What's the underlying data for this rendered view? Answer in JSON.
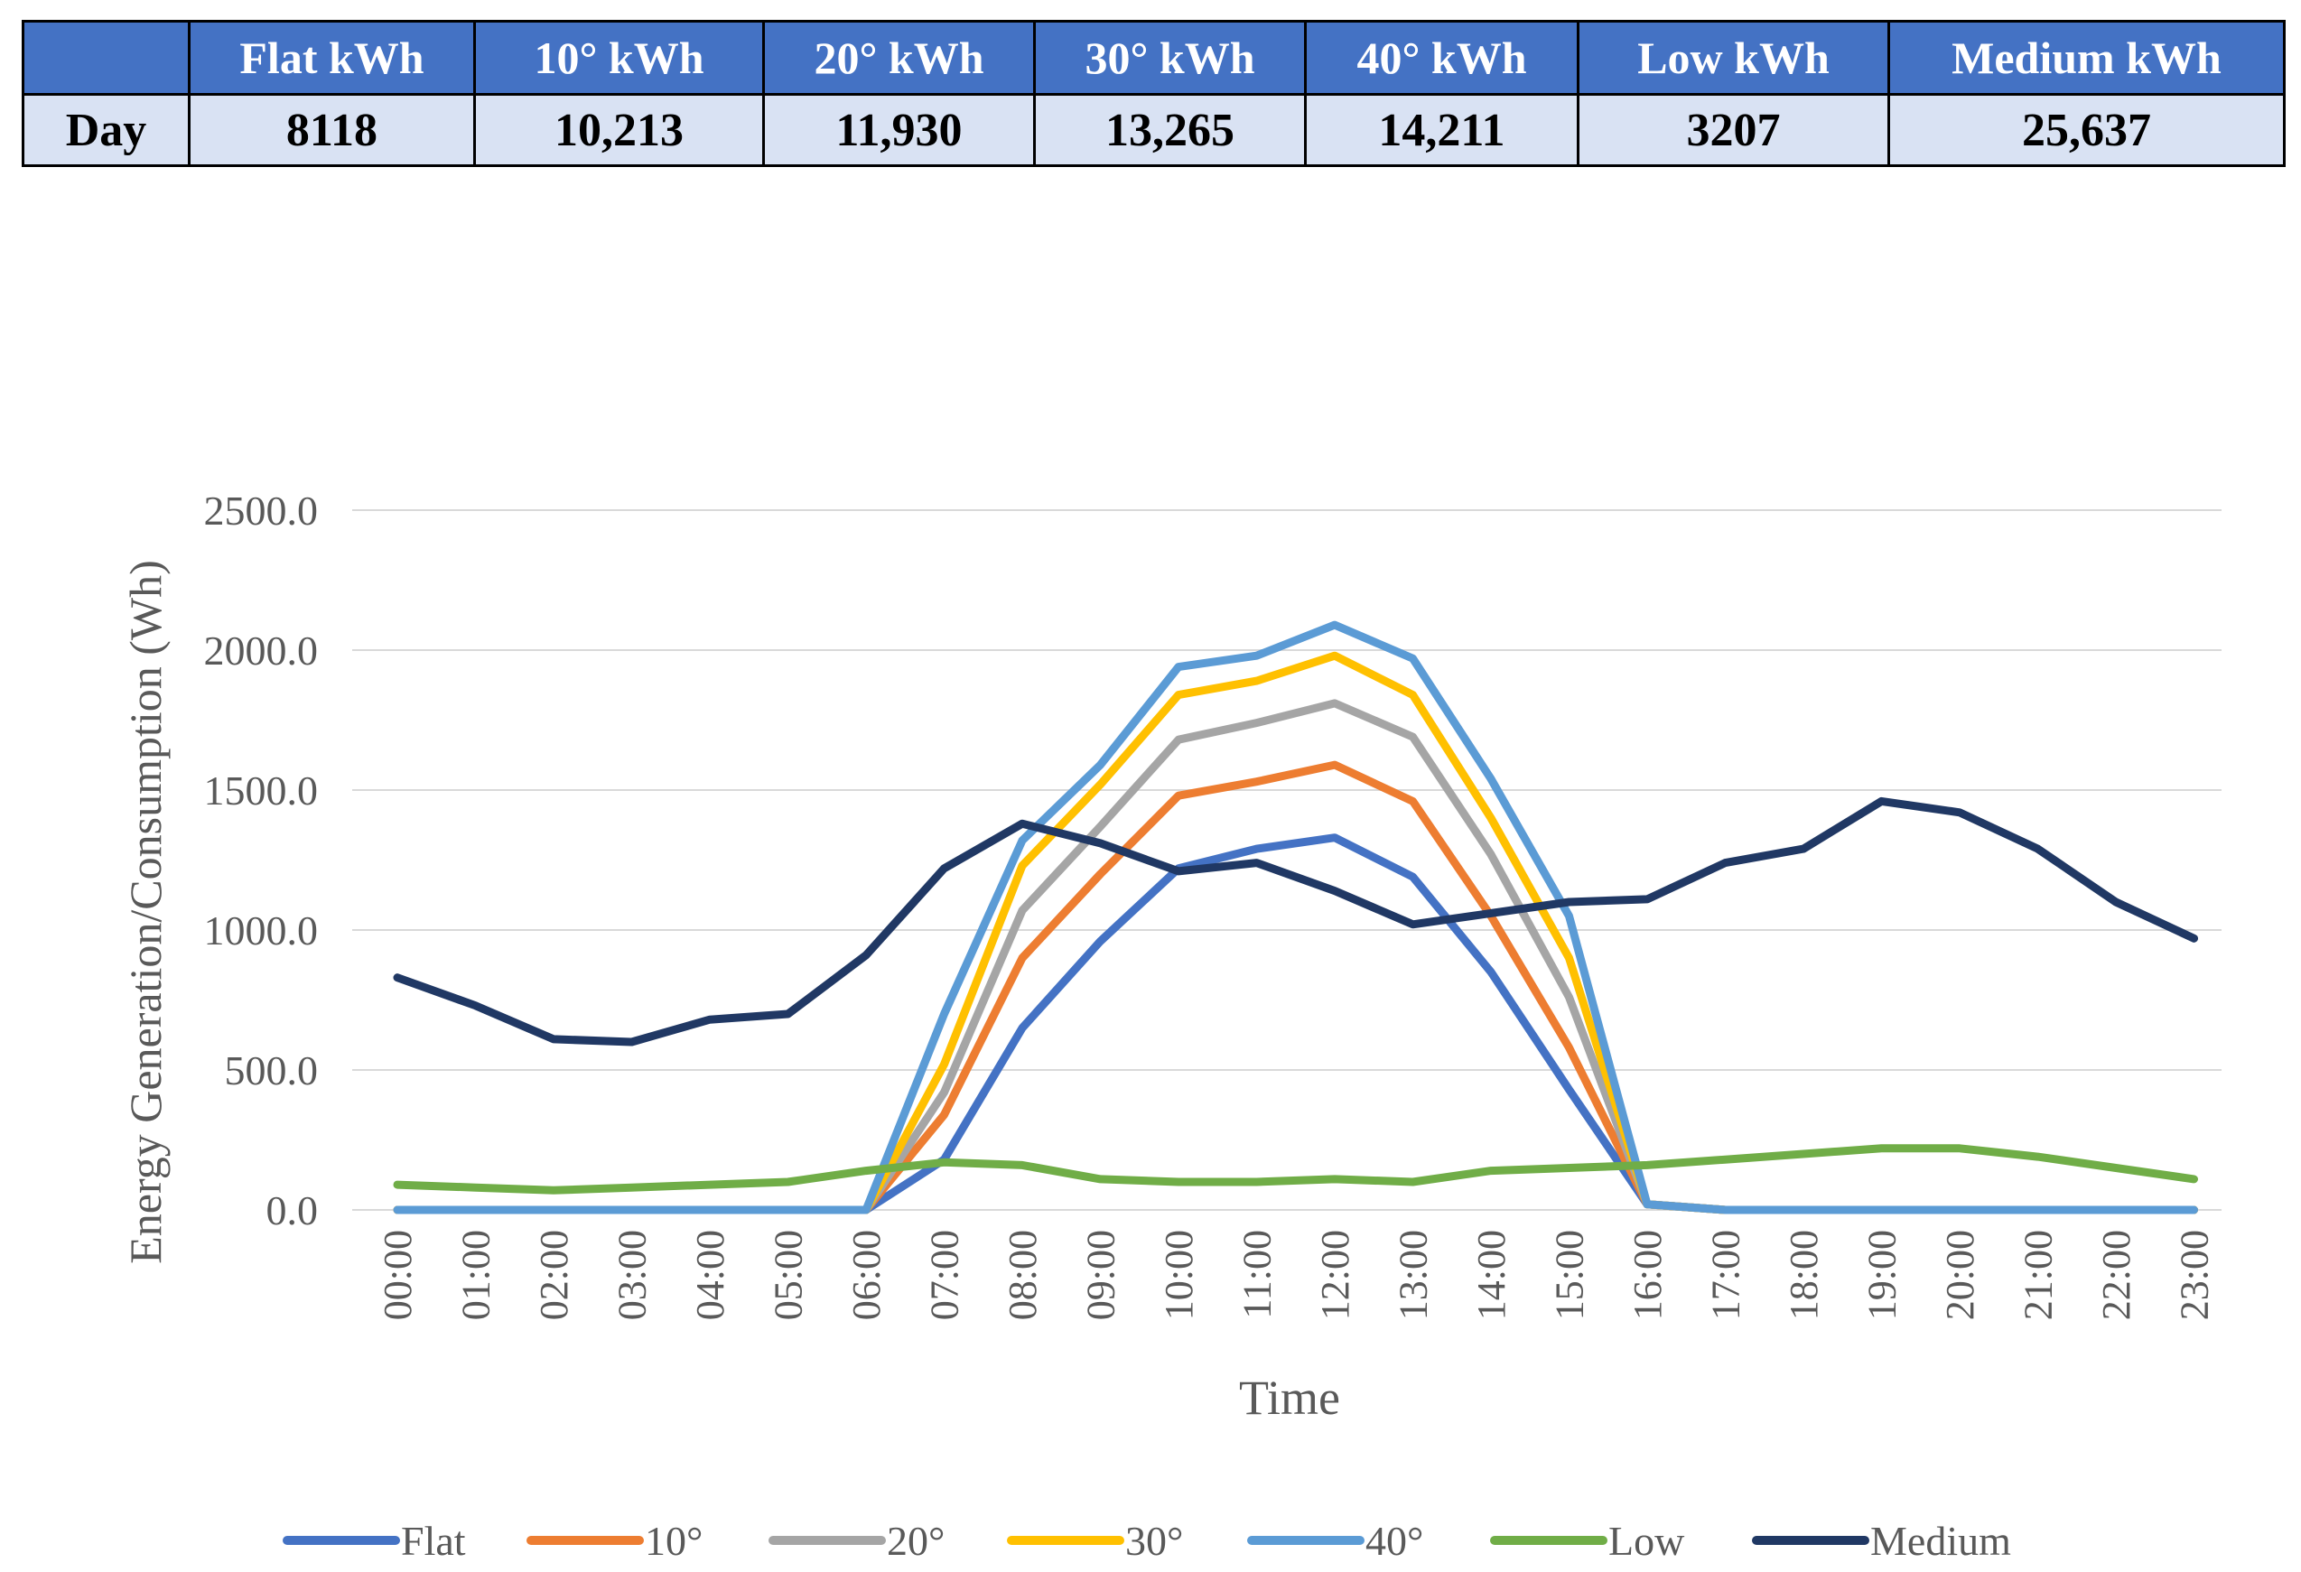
{
  "table": {
    "corner": "",
    "headers": [
      "Flat kWh",
      "10° kWh",
      "20° kWh",
      "30° kWh",
      "40° kWh",
      "Low kWh",
      "Medium kWh"
    ],
    "row_label": "Day",
    "values": [
      "8118",
      "10,213",
      "11,930",
      "13,265",
      "14,211",
      "3207",
      "25,637"
    ]
  },
  "chart_data": {
    "type": "line",
    "title": "",
    "xlabel": "Time",
    "ylabel": "Energy Generation/Consumption (Wh)",
    "ylim": [
      0,
      2500
    ],
    "yticks": [
      "0.0",
      "500.0",
      "1000.0",
      "1500.0",
      "2000.0",
      "2500.0"
    ],
    "grid": true,
    "legend": "bottom",
    "categories": [
      "00:00",
      "01:00",
      "02:00",
      "03:00",
      "04:00",
      "05:00",
      "06:00",
      "07:00",
      "08:00",
      "09:00",
      "10:00",
      "11:00",
      "12:00",
      "13:00",
      "14:00",
      "15:00",
      "16:00",
      "17:00",
      "18:00",
      "19:00",
      "20:00",
      "21:00",
      "22:00",
      "23:00"
    ],
    "series": [
      {
        "name": "Flat",
        "color": "#4472C4",
        "values": [
          0,
          0,
          0,
          0,
          0,
          0,
          0,
          180,
          650,
          960,
          1220,
          1290,
          1330,
          1190,
          850,
          430,
          20,
          0,
          0,
          0,
          0,
          0,
          0,
          0
        ]
      },
      {
        "name": "10°",
        "color": "#ED7D31",
        "values": [
          0,
          0,
          0,
          0,
          0,
          0,
          0,
          340,
          900,
          1200,
          1480,
          1530,
          1590,
          1460,
          1050,
          580,
          20,
          0,
          0,
          0,
          0,
          0,
          0,
          0
        ]
      },
      {
        "name": "20°",
        "color": "#A5A5A5",
        "values": [
          0,
          0,
          0,
          0,
          0,
          0,
          0,
          420,
          1070,
          1370,
          1680,
          1740,
          1810,
          1690,
          1270,
          760,
          20,
          0,
          0,
          0,
          0,
          0,
          0,
          0
        ]
      },
      {
        "name": "30°",
        "color": "#FFC000",
        "values": [
          0,
          0,
          0,
          0,
          0,
          0,
          0,
          520,
          1230,
          1520,
          1840,
          1890,
          1980,
          1840,
          1400,
          900,
          20,
          0,
          0,
          0,
          0,
          0,
          0,
          0
        ]
      },
      {
        "name": "40°",
        "color": "#5B9BD5",
        "values": [
          0,
          0,
          0,
          0,
          0,
          0,
          0,
          700,
          1320,
          1590,
          1940,
          1980,
          2090,
          1970,
          1540,
          1050,
          20,
          0,
          0,
          0,
          0,
          0,
          0,
          0
        ]
      },
      {
        "name": "Low",
        "color": "#70AD47",
        "values": [
          90,
          80,
          70,
          80,
          90,
          100,
          140,
          170,
          160,
          110,
          100,
          100,
          110,
          100,
          140,
          150,
          160,
          180,
          200,
          220,
          220,
          190,
          150,
          110
        ]
      },
      {
        "name": "Medium",
        "color": "#203864",
        "values": [
          830,
          730,
          610,
          600,
          680,
          700,
          910,
          1220,
          1380,
          1310,
          1210,
          1240,
          1140,
          1020,
          1060,
          1100,
          1110,
          1240,
          1290,
          1460,
          1420,
          1290,
          1100,
          970
        ]
      }
    ]
  }
}
